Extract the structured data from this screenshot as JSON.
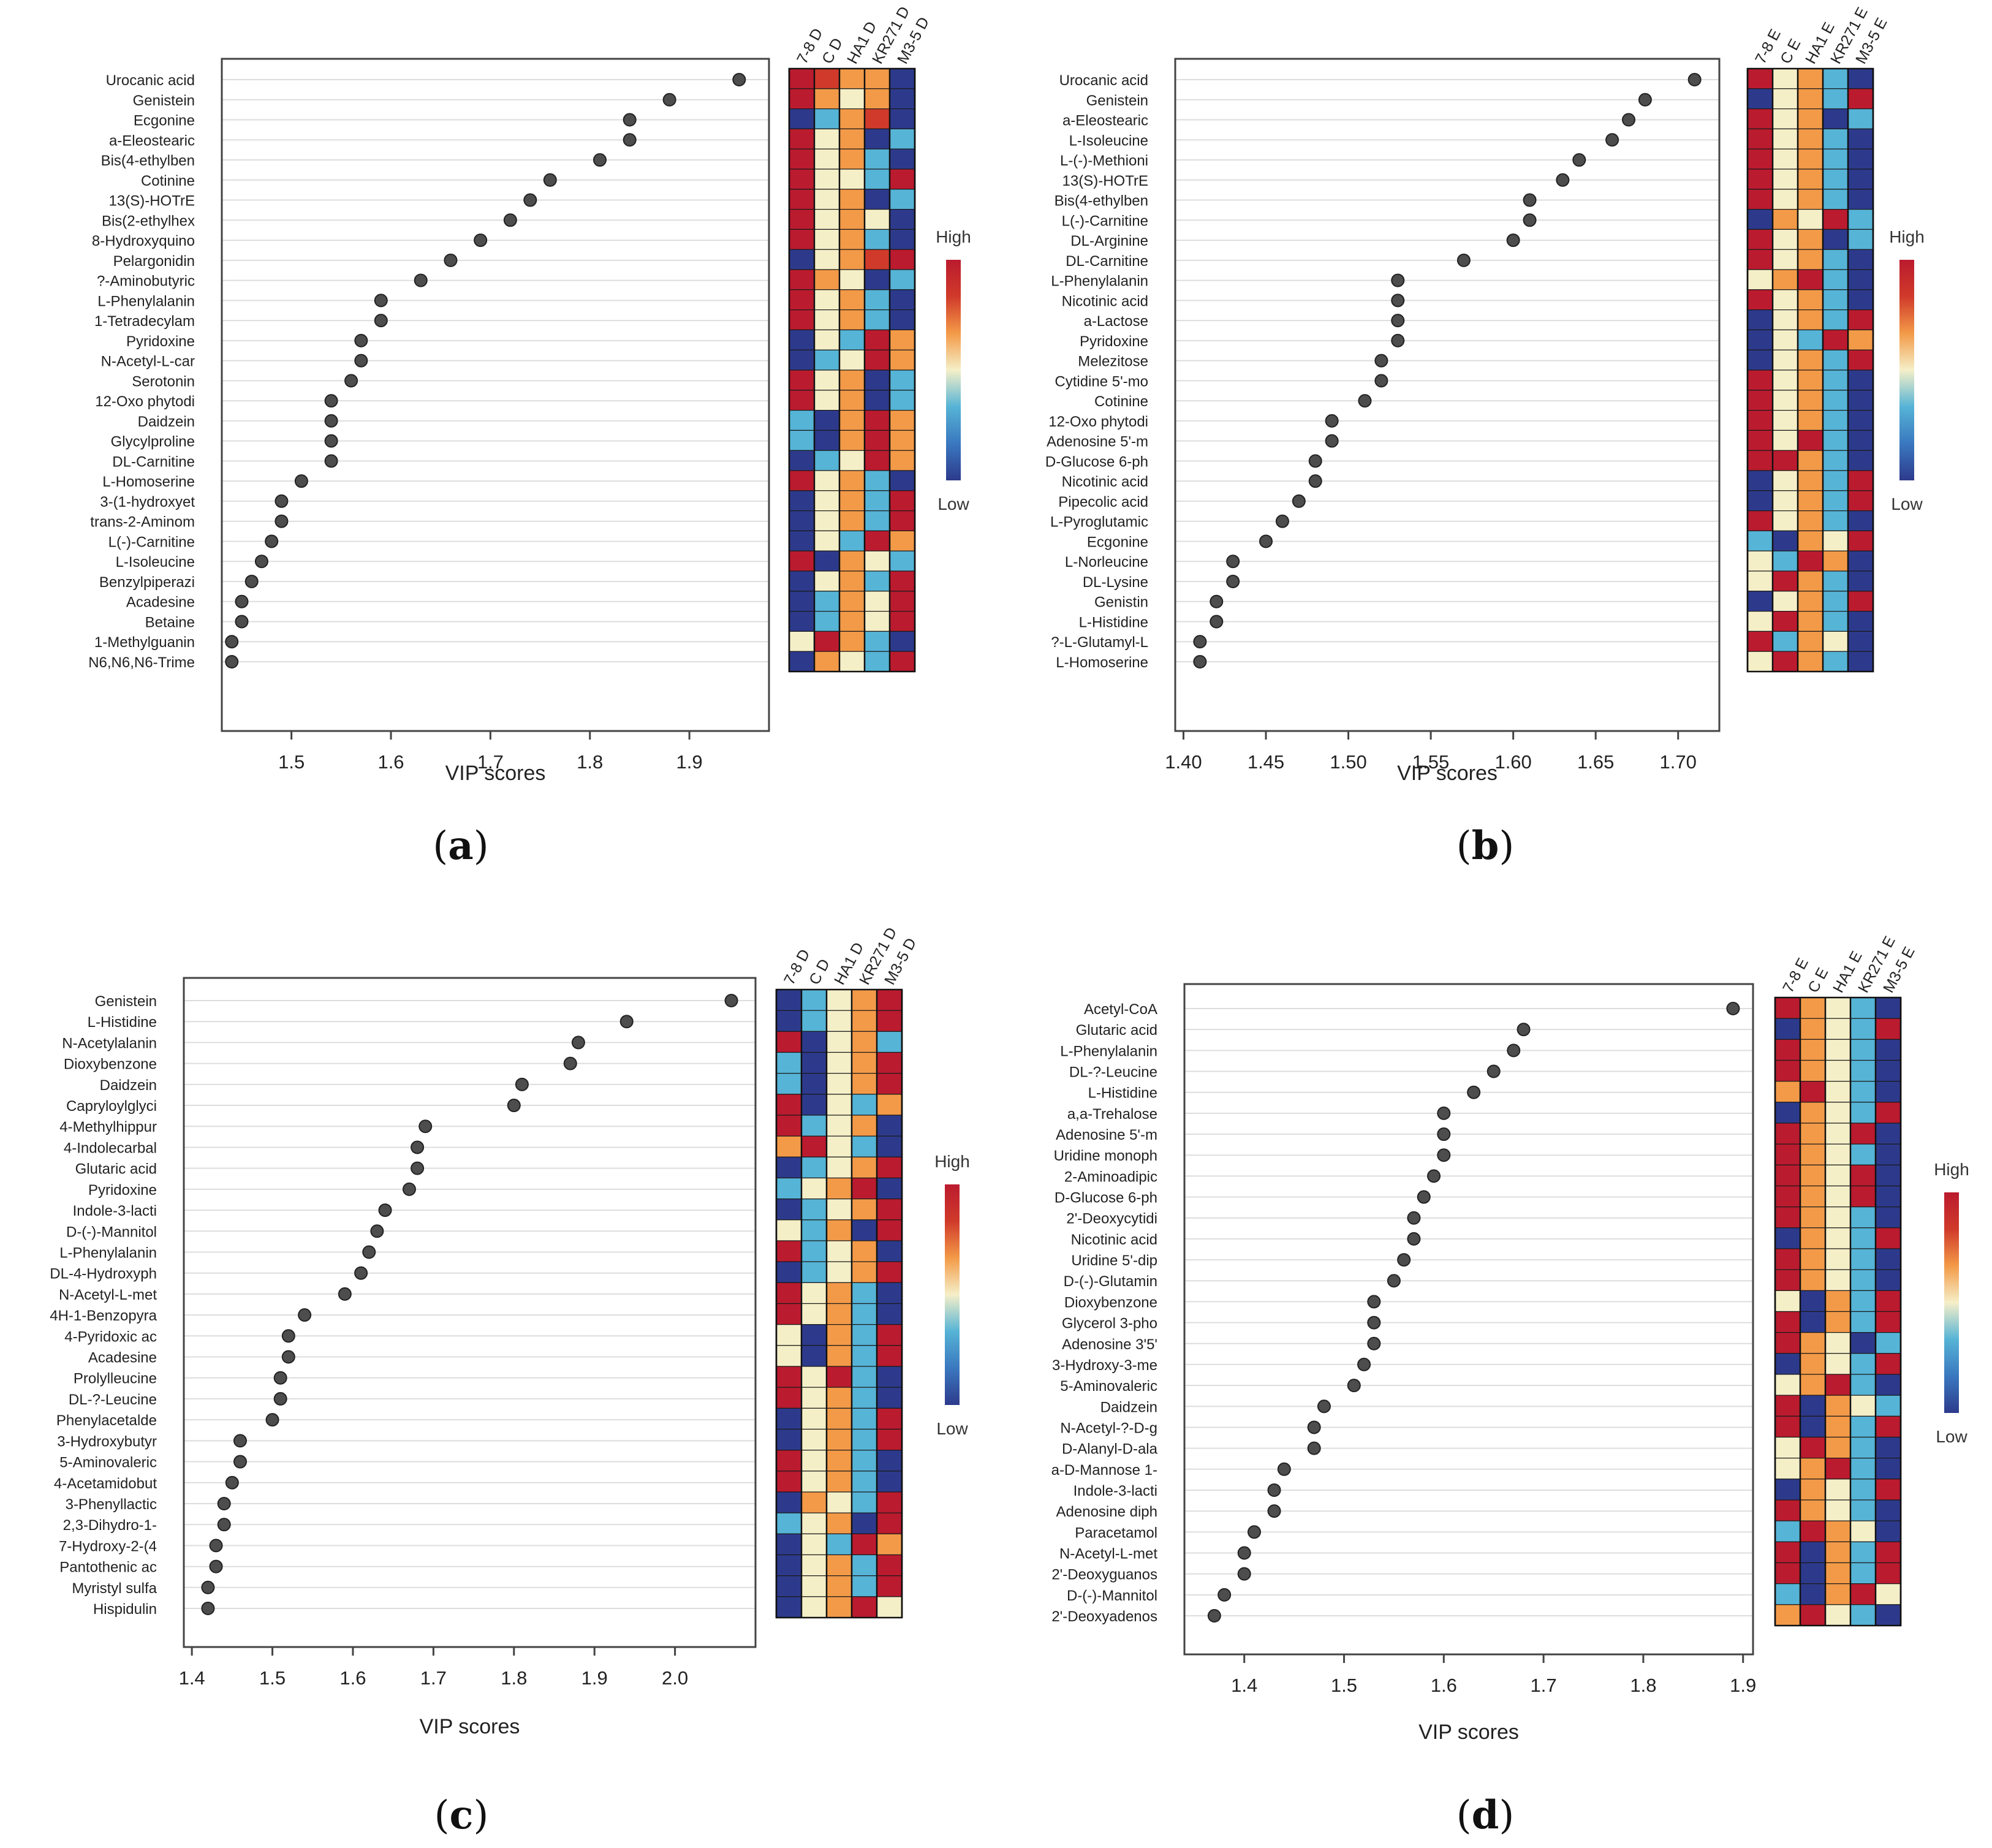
{
  "colors": {
    "dot": "#4d4d4d",
    "grid": "#dddddd",
    "frame": "#444444",
    "scale": [
      "#2d3a8c",
      "#3a78bf",
      "#56b4d6",
      "#f5efc8",
      "#f39a48",
      "#d03a2a",
      "#bb1b2f"
    ]
  },
  "legend": {
    "high": "High",
    "low": "Low"
  },
  "chart_data": [
    {
      "id": "a",
      "type": "scatter",
      "caption": "a",
      "xlabel": "VIP scores",
      "xlim": [
        1.43,
        1.98
      ],
      "xticks": [
        "1.5",
        "1.6",
        "1.7",
        "1.8",
        "1.9"
      ],
      "xtick_values": [
        1.5,
        1.6,
        1.7,
        1.8,
        1.9
      ],
      "groups": [
        "7-8 D",
        "C D",
        "HA1 D",
        "KR271 D",
        "M3-5 D"
      ],
      "compounds": [
        "Urocanic acid",
        "Genistein",
        "Ecgonine",
        "a-Eleostearic",
        "Bis(4-ethylben",
        "Cotinine",
        "13(S)-HOTrE",
        "Bis(2-ethylhex",
        "8-Hydroxyquino",
        "Pelargonidin",
        "?-Aminobutyric",
        "L-Phenylalanin",
        "1-Tetradecylam",
        "Pyridoxine",
        "N-Acetyl-L-car",
        "Serotonin",
        "12-Oxo phytodi",
        "Daidzein",
        "Glycylproline",
        "DL-Carnitine",
        "L-Homoserine",
        "3-(1-hydroxyet",
        "trans-2-Aminom",
        "L(-)-Carnitine",
        "L-Isoleucine",
        "Benzylpiperazi",
        "Acadesine",
        "Betaine",
        "1-Methylguanin",
        "N6,N6,N6-Trime"
      ],
      "values": [
        1.95,
        1.88,
        1.84,
        1.84,
        1.81,
        1.76,
        1.74,
        1.72,
        1.69,
        1.66,
        1.63,
        1.59,
        1.59,
        1.57,
        1.57,
        1.56,
        1.54,
        1.54,
        1.54,
        1.54,
        1.51,
        1.49,
        1.49,
        1.48,
        1.47,
        1.46,
        1.45,
        1.45,
        1.44,
        1.44
      ],
      "heatmap": [
        [
          6,
          5,
          4,
          4,
          0
        ],
        [
          6,
          4,
          3,
          4,
          0
        ],
        [
          0,
          2,
          4,
          5,
          0
        ],
        [
          6,
          3,
          4,
          0,
          2
        ],
        [
          6,
          3,
          4,
          2,
          0
        ],
        [
          6,
          3,
          3,
          2,
          6
        ],
        [
          6,
          3,
          4,
          0,
          2
        ],
        [
          6,
          3,
          4,
          3,
          0
        ],
        [
          6,
          3,
          4,
          2,
          0
        ],
        [
          0,
          3,
          4,
          5,
          6
        ],
        [
          6,
          4,
          3,
          0,
          2
        ],
        [
          6,
          3,
          4,
          2,
          0
        ],
        [
          6,
          3,
          4,
          2,
          0
        ],
        [
          0,
          3,
          2,
          6,
          4
        ],
        [
          0,
          2,
          3,
          6,
          4
        ],
        [
          6,
          3,
          4,
          0,
          2
        ],
        [
          6,
          3,
          4,
          0,
          2
        ],
        [
          2,
          0,
          4,
          6,
          4
        ],
        [
          2,
          0,
          4,
          6,
          4
        ],
        [
          0,
          2,
          3,
          6,
          4
        ],
        [
          6,
          3,
          4,
          2,
          0
        ],
        [
          0,
          3,
          4,
          2,
          6
        ],
        [
          0,
          3,
          4,
          2,
          6
        ],
        [
          0,
          3,
          2,
          6,
          4
        ],
        [
          6,
          0,
          4,
          3,
          2
        ],
        [
          0,
          3,
          4,
          2,
          6
        ],
        [
          0,
          2,
          4,
          3,
          6
        ],
        [
          0,
          2,
          4,
          3,
          6
        ],
        [
          3,
          6,
          4,
          2,
          0
        ],
        [
          0,
          4,
          3,
          2,
          6
        ]
      ]
    },
    {
      "id": "b",
      "type": "scatter",
      "caption": "b",
      "xlabel": "VIP scores",
      "xlim": [
        1.395,
        1.725
      ],
      "xticks": [
        "1.40",
        "1.45",
        "1.50",
        "1.55",
        "1.60",
        "1.65",
        "1.70"
      ],
      "xtick_values": [
        1.4,
        1.45,
        1.5,
        1.55,
        1.6,
        1.65,
        1.7
      ],
      "groups": [
        "7-8 E",
        "C E",
        "HA1 E",
        "KR271 E",
        "M3-5 E"
      ],
      "compounds": [
        "Urocanic acid",
        "Genistein",
        "a-Eleostearic",
        "L-Isoleucine",
        "L-(-)-Methioni",
        "13(S)-HOTrE",
        "Bis(4-ethylben",
        "L(-)-Carnitine",
        "DL-Arginine",
        "DL-Carnitine",
        "L-Phenylalanin",
        "Nicotinic acid",
        "a-Lactose",
        "Pyridoxine",
        "Melezitose",
        "Cytidine 5'-mo",
        "Cotinine",
        "12-Oxo phytodi",
        "Adenosine 5'-m",
        "D-Glucose 6-ph",
        "Nicotinic acid",
        "Pipecolic acid",
        "L-Pyroglutamic",
        "Ecgonine",
        "L-Norleucine",
        "DL-Lysine",
        "Genistin",
        "L-Histidine",
        "?-L-Glutamyl-L",
        "L-Homoserine"
      ],
      "values": [
        1.71,
        1.68,
        1.67,
        1.66,
        1.64,
        1.63,
        1.61,
        1.61,
        1.6,
        1.57,
        1.53,
        1.53,
        1.53,
        1.53,
        1.52,
        1.52,
        1.51,
        1.49,
        1.49,
        1.48,
        1.48,
        1.47,
        1.46,
        1.45,
        1.43,
        1.43,
        1.42,
        1.42,
        1.41,
        1.41
      ],
      "heatmap": [
        [
          6,
          3,
          4,
          2,
          0
        ],
        [
          0,
          3,
          4,
          2,
          6
        ],
        [
          6,
          3,
          4,
          0,
          2
        ],
        [
          6,
          3,
          4,
          2,
          0
        ],
        [
          6,
          3,
          4,
          2,
          0
        ],
        [
          6,
          3,
          4,
          2,
          0
        ],
        [
          6,
          3,
          4,
          2,
          0
        ],
        [
          0,
          4,
          3,
          6,
          2
        ],
        [
          6,
          3,
          4,
          0,
          2
        ],
        [
          6,
          3,
          4,
          2,
          0
        ],
        [
          3,
          4,
          6,
          2,
          0
        ],
        [
          6,
          3,
          4,
          2,
          0
        ],
        [
          0,
          3,
          4,
          2,
          6
        ],
        [
          0,
          3,
          2,
          6,
          4
        ],
        [
          0,
          3,
          4,
          2,
          6
        ],
        [
          6,
          3,
          4,
          2,
          0
        ],
        [
          6,
          3,
          4,
          2,
          0
        ],
        [
          6,
          3,
          4,
          2,
          0
        ],
        [
          6,
          3,
          6,
          2,
          0
        ],
        [
          6,
          6,
          4,
          2,
          0
        ],
        [
          0,
          3,
          4,
          2,
          6
        ],
        [
          0,
          3,
          4,
          2,
          6
        ],
        [
          6,
          3,
          4,
          2,
          0
        ],
        [
          2,
          0,
          4,
          3,
          6
        ],
        [
          3,
          2,
          6,
          4,
          0
        ],
        [
          3,
          6,
          4,
          2,
          0
        ],
        [
          0,
          3,
          4,
          2,
          6
        ],
        [
          3,
          6,
          4,
          2,
          0
        ],
        [
          6,
          2,
          4,
          3,
          0
        ],
        [
          3,
          6,
          4,
          2,
          0
        ]
      ]
    },
    {
      "id": "c",
      "type": "scatter",
      "caption": "c",
      "xlabel": "VIP scores",
      "xlim": [
        1.39,
        2.1
      ],
      "xticks": [
        "1.4",
        "1.5",
        "1.6",
        "1.7",
        "1.8",
        "1.9",
        "2.0"
      ],
      "xtick_values": [
        1.4,
        1.5,
        1.6,
        1.7,
        1.8,
        1.9,
        2.0
      ],
      "groups": [
        "7-8 D",
        "C D",
        "HA1 D",
        "KR271 D",
        "M3-5 D"
      ],
      "compounds": [
        "Genistein",
        "L-Histidine",
        "N-Acetylalanin",
        "Dioxybenzone",
        "Daidzein",
        "Capryloylglyci",
        "4-Methylhippur",
        "4-Indolecarbal",
        "Glutaric acid",
        "Pyridoxine",
        "Indole-3-lacti",
        "D-(-)-Mannitol",
        "L-Phenylalanin",
        "DL-4-Hydroxyph",
        "N-Acetyl-L-met",
        "4H-1-Benzopyra",
        "4-Pyridoxic ac",
        "Acadesine",
        "Prolylleucine",
        "DL-?-Leucine",
        "Phenylacetalde",
        "3-Hydroxybutyr",
        "5-Aminovaleric",
        "4-Acetamidobut",
        "3-Phenyllactic",
        "2,3-Dihydro-1-",
        "7-Hydroxy-2-(4",
        "Pantothenic ac",
        "Myristyl sulfa",
        "Hispidulin"
      ],
      "values": [
        2.07,
        1.94,
        1.88,
        1.87,
        1.81,
        1.8,
        1.69,
        1.68,
        1.68,
        1.67,
        1.64,
        1.63,
        1.62,
        1.61,
        1.59,
        1.54,
        1.52,
        1.52,
        1.51,
        1.51,
        1.5,
        1.46,
        1.46,
        1.45,
        1.44,
        1.44,
        1.43,
        1.43,
        1.42,
        1.42
      ],
      "heatmap": [
        [
          0,
          2,
          3,
          4,
          6
        ],
        [
          0,
          2,
          3,
          4,
          6
        ],
        [
          6,
          0,
          3,
          4,
          2
        ],
        [
          2,
          0,
          3,
          4,
          6
        ],
        [
          2,
          0,
          3,
          4,
          6
        ],
        [
          6,
          0,
          3,
          2,
          4
        ],
        [
          6,
          2,
          3,
          4,
          0
        ],
        [
          4,
          6,
          3,
          2,
          0
        ],
        [
          0,
          2,
          3,
          4,
          6
        ],
        [
          2,
          3,
          4,
          6,
          0
        ],
        [
          0,
          2,
          3,
          4,
          6
        ],
        [
          3,
          2,
          4,
          0,
          6
        ],
        [
          6,
          2,
          3,
          4,
          0
        ],
        [
          0,
          2,
          3,
          4,
          6
        ],
        [
          6,
          3,
          4,
          2,
          0
        ],
        [
          6,
          3,
          4,
          2,
          0
        ],
        [
          3,
          0,
          4,
          2,
          6
        ],
        [
          3,
          0,
          4,
          2,
          6
        ],
        [
          6,
          3,
          6,
          2,
          0
        ],
        [
          6,
          3,
          4,
          2,
          0
        ],
        [
          0,
          3,
          4,
          2,
          6
        ],
        [
          0,
          3,
          4,
          2,
          6
        ],
        [
          6,
          3,
          4,
          2,
          0
        ],
        [
          6,
          3,
          4,
          2,
          0
        ],
        [
          0,
          4,
          3,
          2,
          6
        ],
        [
          2,
          3,
          4,
          0,
          6
        ],
        [
          0,
          3,
          2,
          6,
          4
        ],
        [
          0,
          3,
          4,
          2,
          6
        ],
        [
          0,
          3,
          4,
          2,
          6
        ],
        [
          0,
          3,
          4,
          6,
          3
        ]
      ]
    },
    {
      "id": "d",
      "type": "scatter",
      "caption": "d",
      "xlabel": "VIP scores",
      "xlim": [
        1.34,
        1.91
      ],
      "xticks": [
        "1.4",
        "1.5",
        "1.6",
        "1.7",
        "1.8",
        "1.9"
      ],
      "xtick_values": [
        1.4,
        1.5,
        1.6,
        1.7,
        1.8,
        1.9
      ],
      "groups": [
        "7-8 E",
        "C E",
        "HA1 E",
        "KR271 E",
        "M3-5 E"
      ],
      "compounds": [
        "Acetyl-CoA",
        "Glutaric acid",
        "L-Phenylalanin",
        "DL-?-Leucine",
        "L-Histidine",
        "a,a-Trehalose",
        "Adenosine 5'-m",
        "Uridine monoph",
        "2-Aminoadipic",
        "D-Glucose 6-ph",
        "2'-Deoxycytidi",
        "Nicotinic acid",
        "Uridine 5'-dip",
        "D-(-)-Glutamin",
        "Dioxybenzone",
        "Glycerol 3-pho",
        "Adenosine 3'5'",
        "3-Hydroxy-3-me",
        "5-Aminovaleric",
        "Daidzein",
        "N-Acetyl-?-D-g",
        "D-Alanyl-D-ala",
        "a-D-Mannose 1-",
        "Indole-3-lacti",
        "Adenosine diph",
        "Paracetamol",
        "N-Acetyl-L-met",
        "2'-Deoxyguanos",
        "D-(-)-Mannitol",
        "2'-Deoxyadenos"
      ],
      "values": [
        1.89,
        1.68,
        1.67,
        1.65,
        1.63,
        1.6,
        1.6,
        1.6,
        1.59,
        1.58,
        1.57,
        1.57,
        1.56,
        1.55,
        1.53,
        1.53,
        1.53,
        1.52,
        1.51,
        1.48,
        1.47,
        1.47,
        1.44,
        1.43,
        1.43,
        1.41,
        1.4,
        1.4,
        1.38,
        1.37
      ],
      "heatmap": [
        [
          6,
          4,
          3,
          2,
          0
        ],
        [
          0,
          4,
          3,
          2,
          6
        ],
        [
          6,
          4,
          3,
          2,
          0
        ],
        [
          6,
          4,
          3,
          2,
          0
        ],
        [
          4,
          6,
          3,
          2,
          0
        ],
        [
          0,
          4,
          3,
          2,
          6
        ],
        [
          6,
          4,
          3,
          6,
          0
        ],
        [
          6,
          4,
          3,
          2,
          0
        ],
        [
          6,
          4,
          3,
          6,
          0
        ],
        [
          6,
          4,
          3,
          6,
          0
        ],
        [
          6,
          4,
          3,
          2,
          0
        ],
        [
          0,
          4,
          3,
          2,
          6
        ],
        [
          6,
          4,
          3,
          2,
          0
        ],
        [
          6,
          4,
          3,
          2,
          0
        ],
        [
          3,
          0,
          4,
          2,
          6
        ],
        [
          6,
          0,
          4,
          2,
          6
        ],
        [
          6,
          4,
          3,
          0,
          2
        ],
        [
          0,
          4,
          3,
          2,
          6
        ],
        [
          3,
          4,
          6,
          2,
          0
        ],
        [
          6,
          0,
          4,
          3,
          2
        ],
        [
          6,
          0,
          4,
          2,
          6
        ],
        [
          3,
          6,
          4,
          2,
          0
        ],
        [
          3,
          4,
          6,
          2,
          0
        ],
        [
          0,
          4,
          3,
          2,
          6
        ],
        [
          6,
          4,
          3,
          2,
          0
        ],
        [
          2,
          6,
          4,
          3,
          0
        ],
        [
          6,
          0,
          4,
          2,
          6
        ],
        [
          6,
          0,
          4,
          2,
          6
        ],
        [
          2,
          0,
          4,
          6,
          3
        ],
        [
          4,
          6,
          3,
          2,
          0
        ]
      ]
    }
  ]
}
